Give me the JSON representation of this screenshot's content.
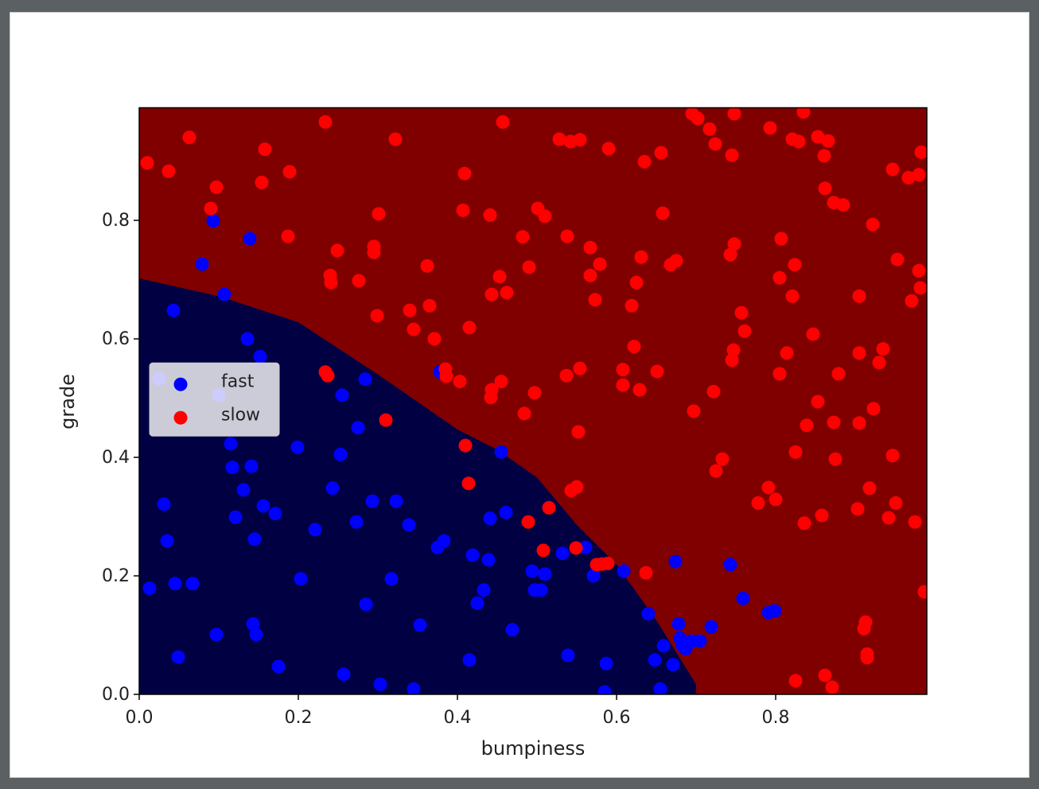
{
  "chart_data": {
    "type": "scatter",
    "x_label": "bumpiness",
    "y_label": "grade",
    "xlim": [
      0,
      0.99
    ],
    "ylim": [
      0,
      0.99
    ],
    "xticks": [
      {
        "value": 0,
        "label": "0.0"
      },
      0.2,
      0.4,
      0.6,
      0.8
    ],
    "yticks": [
      {
        "value": 0,
        "label": "0.0"
      },
      0.2,
      0.4,
      0.6,
      0.8
    ],
    "legend": "center left",
    "background_color": "#800000",
    "decision_boundary": {
      "color": "#000042",
      "x": [
        0,
        0.1,
        0.2,
        0.3,
        0.4,
        0.45,
        0.5,
        0.55,
        0.6,
        0.65,
        0.7,
        0.7
      ],
      "y": [
        0.702,
        0.672,
        0.628,
        0.54,
        0.447,
        0.413,
        0.366,
        0.286,
        0.219,
        0.125,
        0.017,
        0
      ]
    },
    "series": [
      {
        "name": "fast",
        "color": "#0000ff",
        "x": [
          0.093,
          0.139,
          0.079,
          0.107,
          0.043,
          0.136,
          0.152,
          0.025,
          0.1,
          0.255,
          0.284,
          0.275,
          0.115,
          0.199,
          0.253,
          0.117,
          0.141,
          0.243,
          0.131,
          0.031,
          0.156,
          0.171,
          0.293,
          0.323,
          0.121,
          0.221,
          0.273,
          0.339,
          0.035,
          0.145,
          0.378,
          0.455,
          0.441,
          0.461,
          0.375,
          0.383,
          0.419,
          0.439,
          0.532,
          0.561,
          0.494,
          0.51,
          0.497,
          0.505,
          0.571,
          0.609,
          0.674,
          0.743,
          0.759,
          0.791,
          0.799,
          0.719,
          0.705,
          0.695,
          0.683,
          0.687,
          0.678,
          0.68,
          0.64,
          0.659,
          0.648,
          0.671,
          0.655,
          0.587,
          0.585,
          0.539,
          0.433,
          0.425,
          0.317,
          0.203,
          0.285,
          0.353,
          0.469,
          0.415,
          0.345,
          0.303,
          0.257,
          0.175,
          0.143,
          0.147,
          0.097,
          0.049,
          0.013,
          0.045,
          0.067
        ],
        "values": [
          0.799,
          0.769,
          0.726,
          0.675,
          0.648,
          0.6,
          0.57,
          0.533,
          0.505,
          0.505,
          0.532,
          0.45,
          0.423,
          0.417,
          0.405,
          0.383,
          0.385,
          0.348,
          0.345,
          0.321,
          0.318,
          0.305,
          0.326,
          0.326,
          0.299,
          0.278,
          0.291,
          0.286,
          0.259,
          0.262,
          0.544,
          0.409,
          0.297,
          0.307,
          0.248,
          0.259,
          0.235,
          0.227,
          0.238,
          0.248,
          0.208,
          0.203,
          0.176,
          0.176,
          0.2,
          0.208,
          0.224,
          0.219,
          0.162,
          0.138,
          0.141,
          0.114,
          0.09,
          0.09,
          0.082,
          0.077,
          0.119,
          0.095,
          0.136,
          0.082,
          0.058,
          0.05,
          0.009,
          0.052,
          0.004,
          0.066,
          0.176,
          0.154,
          0.195,
          0.195,
          0.152,
          0.117,
          0.109,
          0.058,
          0.009,
          0.017,
          0.034,
          0.047,
          0.119,
          0.101,
          0.101,
          0.063,
          0.179,
          0.187,
          0.187
        ]
      },
      {
        "name": "slow",
        "color": "#ff0000",
        "x": [
          0.01,
          0.037,
          0.063,
          0.097,
          0.09,
          0.158,
          0.154,
          0.189,
          0.187,
          0.234,
          0.322,
          0.301,
          0.249,
          0.24,
          0.241,
          0.276,
          0.295,
          0.295,
          0.299,
          0.34,
          0.345,
          0.362,
          0.365,
          0.371,
          0.234,
          0.237,
          0.385,
          0.386,
          0.403,
          0.415,
          0.409,
          0.407,
          0.441,
          0.457,
          0.443,
          0.462,
          0.453,
          0.442,
          0.443,
          0.455,
          0.482,
          0.49,
          0.501,
          0.51,
          0.484,
          0.497,
          0.528,
          0.542,
          0.554,
          0.538,
          0.567,
          0.579,
          0.567,
          0.573,
          0.59,
          0.537,
          0.554,
          0.552,
          0.543,
          0.55,
          0.635,
          0.656,
          0.658,
          0.631,
          0.625,
          0.619,
          0.622,
          0.608,
          0.608,
          0.629,
          0.651,
          0.668,
          0.675,
          0.695,
          0.702,
          0.717,
          0.724,
          0.745,
          0.748,
          0.697,
          0.722,
          0.733,
          0.725,
          0.748,
          0.743,
          0.757,
          0.761,
          0.747,
          0.745,
          0.793,
          0.835,
          0.821,
          0.829,
          0.853,
          0.866,
          0.861,
          0.807,
          0.805,
          0.824,
          0.821,
          0.814,
          0.805,
          0.847,
          0.862,
          0.873,
          0.885,
          0.853,
          0.839,
          0.873,
          0.879,
          0.875,
          0.825,
          0.791,
          0.778,
          0.8,
          0.836,
          0.858,
          0.922,
          0.947,
          0.967,
          0.98,
          0.983,
          0.953,
          0.98,
          0.982,
          0.971,
          0.905,
          0.905,
          0.935,
          0.93,
          0.923,
          0.905,
          0.947,
          0.918,
          0.903,
          0.951,
          0.942,
          0.975,
          0.987,
          0.913,
          0.911,
          0.915,
          0.915,
          0.862,
          0.871,
          0.825,
          0.637,
          0.582,
          0.575,
          0.589,
          0.549,
          0.515,
          0.489,
          0.508,
          0.414,
          0.41,
          0.31
        ],
        "values": [
          0.897,
          0.883,
          0.94,
          0.856,
          0.82,
          0.92,
          0.864,
          0.882,
          0.773,
          0.966,
          0.937,
          0.811,
          0.749,
          0.707,
          0.695,
          0.698,
          0.756,
          0.746,
          0.639,
          0.648,
          0.616,
          0.723,
          0.656,
          0.6,
          0.544,
          0.538,
          0.549,
          0.537,
          0.528,
          0.619,
          0.879,
          0.817,
          0.809,
          0.966,
          0.675,
          0.678,
          0.705,
          0.501,
          0.514,
          0.528,
          0.772,
          0.721,
          0.82,
          0.807,
          0.474,
          0.509,
          0.937,
          0.933,
          0.936,
          0.773,
          0.754,
          0.726,
          0.707,
          0.666,
          0.921,
          0.538,
          0.55,
          0.443,
          0.344,
          0.35,
          0.899,
          0.914,
          0.812,
          0.738,
          0.695,
          0.656,
          0.587,
          0.548,
          0.522,
          0.514,
          0.545,
          0.725,
          0.732,
          0.98,
          0.972,
          0.954,
          0.929,
          0.91,
          0.98,
          0.478,
          0.511,
          0.397,
          0.377,
          0.76,
          0.742,
          0.644,
          0.613,
          0.581,
          0.564,
          0.956,
          0.983,
          0.937,
          0.933,
          0.941,
          0.934,
          0.909,
          0.769,
          0.703,
          0.725,
          0.672,
          0.576,
          0.541,
          0.608,
          0.854,
          0.83,
          0.826,
          0.494,
          0.454,
          0.459,
          0.541,
          0.397,
          0.409,
          0.349,
          0.323,
          0.329,
          0.289,
          0.302,
          0.793,
          0.886,
          0.872,
          0.877,
          0.915,
          0.734,
          0.715,
          0.686,
          0.664,
          0.672,
          0.576,
          0.583,
          0.56,
          0.482,
          0.458,
          0.403,
          0.348,
          0.313,
          0.323,
          0.298,
          0.291,
          0.173,
          0.122,
          0.111,
          0.068,
          0.062,
          0.032,
          0.012,
          0.023,
          0.205,
          0.22,
          0.219,
          0.221,
          0.247,
          0.315,
          0.291,
          0.243,
          0.356,
          0.42,
          0.463
        ]
      }
    ]
  }
}
